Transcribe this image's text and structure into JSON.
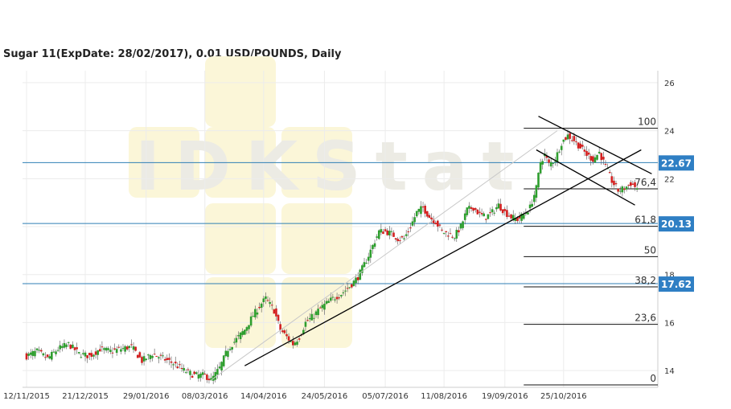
{
  "chart_data": {
    "type": "candlestick",
    "title": "Sugar 11(ExpDate: 28/02/2017), 0.01 USD/POUNDS, Daily",
    "watermark": "IDKStat",
    "ylim": [
      13.3,
      26.5
    ],
    "y_ticks": [
      14,
      16,
      18,
      20,
      22,
      24,
      26
    ],
    "x_tick_labels": [
      "12/11/2015",
      "21/12/2015",
      "29/01/2016",
      "08/03/2016",
      "14/04/2016",
      "24/05/2016",
      "05/07/2016",
      "11/08/2016",
      "19/09/2016",
      "25/10/2016"
    ],
    "grid": true,
    "colors": {
      "up": "#2e9e2e",
      "down": "#d42020",
      "level_line": "#2f7fb5",
      "badge": "#2f7fc4",
      "trendline": "#000000"
    },
    "horizontal_levels": [
      {
        "label": "22.67",
        "value": 22.67
      },
      {
        "label": "20.13",
        "value": 20.13
      },
      {
        "label": "17.62",
        "value": 17.62
      }
    ],
    "fibonacci": {
      "high": 24.1,
      "low": 13.4,
      "levels": [
        {
          "label": "100",
          "ratio": 1.0
        },
        {
          "label": "76,4",
          "ratio": 0.764
        },
        {
          "label": "61,8",
          "ratio": 0.618
        },
        {
          "label": "50",
          "ratio": 0.5
        },
        {
          "label": "38,2",
          "ratio": 0.382
        },
        {
          "label": "23,6",
          "ratio": 0.236
        },
        {
          "label": "0",
          "ratio": 0.0
        }
      ]
    },
    "close_path": [
      [
        0,
        14.6
      ],
      [
        5,
        14.8
      ],
      [
        10,
        14.5
      ],
      [
        15,
        14.9
      ],
      [
        20,
        15.1
      ],
      [
        25,
        14.7
      ],
      [
        30,
        14.6
      ],
      [
        35,
        14.9
      ],
      [
        40,
        14.8
      ],
      [
        45,
        14.9
      ],
      [
        50,
        15.0
      ],
      [
        55,
        14.4
      ],
      [
        60,
        14.7
      ],
      [
        65,
        14.5
      ],
      [
        70,
        14.3
      ],
      [
        75,
        14.0
      ],
      [
        80,
        13.8
      ],
      [
        85,
        13.8
      ],
      [
        88,
        13.6
      ],
      [
        92,
        14.1
      ],
      [
        96,
        14.9
      ],
      [
        100,
        15.3
      ],
      [
        104,
        15.7
      ],
      [
        108,
        16.3
      ],
      [
        112,
        16.8
      ],
      [
        114,
        17.0
      ],
      [
        118,
        16.5
      ],
      [
        121,
        15.7
      ],
      [
        124,
        15.4
      ],
      [
        127,
        15.1
      ],
      [
        130,
        15.4
      ],
      [
        133,
        16.0
      ],
      [
        137,
        16.3
      ],
      [
        140,
        16.6
      ],
      [
        143,
        16.8
      ],
      [
        146,
        17.0
      ],
      [
        150,
        17.2
      ],
      [
        154,
        17.5
      ],
      [
        158,
        17.9
      ],
      [
        162,
        18.6
      ],
      [
        165,
        19.2
      ],
      [
        168,
        19.8
      ],
      [
        171,
        19.8
      ],
      [
        174,
        19.7
      ],
      [
        177,
        19.5
      ],
      [
        180,
        19.5
      ],
      [
        183,
        20.0
      ],
      [
        186,
        20.6
      ],
      [
        189,
        20.8
      ],
      [
        192,
        20.4
      ],
      [
        195,
        20.2
      ],
      [
        198,
        19.8
      ],
      [
        201,
        19.7
      ],
      [
        204,
        19.6
      ],
      [
        207,
        20.0
      ],
      [
        210,
        20.7
      ],
      [
        213,
        20.8
      ],
      [
        216,
        20.5
      ],
      [
        219,
        20.4
      ],
      [
        222,
        20.6
      ],
      [
        225,
        20.9
      ],
      [
        228,
        20.6
      ],
      [
        231,
        20.4
      ],
      [
        234,
        20.3
      ],
      [
        237,
        20.5
      ],
      [
        240,
        20.8
      ],
      [
        243,
        21.6
      ],
      [
        245,
        22.7
      ],
      [
        247,
        23.0
      ],
      [
        249,
        22.6
      ],
      [
        252,
        22.8
      ],
      [
        255,
        23.5
      ],
      [
        258,
        23.8
      ],
      [
        261,
        23.6
      ],
      [
        264,
        23.3
      ],
      [
        267,
        23.0
      ],
      [
        270,
        22.8
      ],
      [
        273,
        23.1
      ],
      [
        276,
        22.5
      ],
      [
        279,
        21.9
      ],
      [
        282,
        21.5
      ],
      [
        285,
        21.6
      ],
      [
        288,
        21.8
      ],
      [
        291,
        21.6
      ]
    ],
    "trendlines": [
      {
        "name": "rising-support",
        "from": [
          104,
          14.2
        ],
        "to": [
          293,
          23.2
        ]
      },
      {
        "name": "rising-channel-top",
        "from": [
          88,
          13.6
        ],
        "to": [
          253,
          24.0
        ]
      },
      {
        "name": "falling-channel-top",
        "from": [
          244,
          24.6
        ],
        "to": [
          298,
          22.2
        ]
      },
      {
        "name": "falling-channel-bottom",
        "from": [
          243,
          23.2
        ],
        "to": [
          290,
          20.9
        ]
      }
    ],
    "x_ticks_at": [
      0,
      28,
      57,
      85,
      113,
      142,
      171,
      199,
      228,
      256
    ]
  }
}
